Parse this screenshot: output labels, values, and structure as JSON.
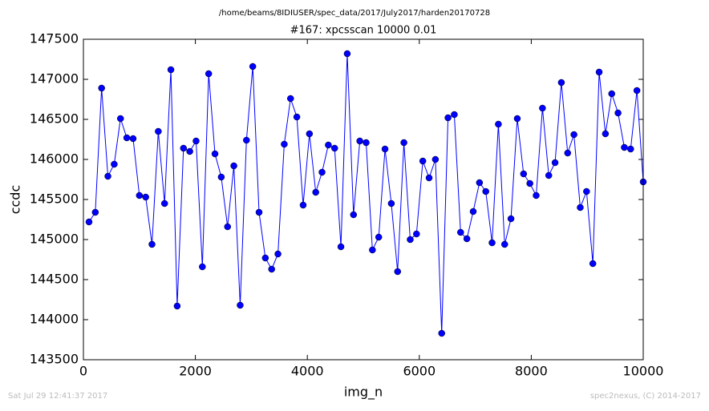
{
  "header": "/home/beams/8IDIUSER/spec_data/2017/July2017/harden20170728",
  "footer_left": "Sat Jul 29 12:41:37 2017",
  "footer_right": "spec2nexus, (C) 2014-2017",
  "chart_data": {
    "type": "line",
    "title": "#167: xpcsscan 10000 0.01",
    "xlabel": "img_n",
    "ylabel": "ccdc",
    "color": "#0000ff",
    "markers": true,
    "x": [
      100,
      212.5,
      325,
      437.5,
      550,
      662.5,
      775,
      887.5,
      1000,
      1112.5,
      1225,
      1337.5,
      1450,
      1562.5,
      1675,
      1787.5,
      1900,
      2012.5,
      2125,
      2237.5,
      2350,
      2462.5,
      2575,
      2687.5,
      2800,
      2912.5,
      3025,
      3137.5,
      3250,
      3362.5,
      3475,
      3587.5,
      3700,
      3812.5,
      3925,
      4037.5,
      4150,
      4262.5,
      4375,
      4487.5,
      4600,
      4712.5,
      4825,
      4937.5,
      5050,
      5162.5,
      5275,
      5387.5,
      5500,
      5612.5,
      5725,
      5837.5,
      5950,
      6062.5,
      6175,
      6287.5,
      6400,
      6512.5,
      6625,
      6737.5,
      6850,
      6962.5,
      7075,
      7187.5,
      7300,
      7412.5,
      7525,
      7637.5,
      7750,
      7862.5,
      7975,
      8087.5,
      8200,
      8312.5,
      8425,
      8537.5,
      8650,
      8762.5,
      8875,
      8987.5,
      9100,
      9212.5,
      9325,
      9437.5,
      9550,
      9662.5,
      9775,
      9887.5,
      10000
    ],
    "values": [
      145220,
      145340,
      146890,
      145790,
      145940,
      146510,
      146270,
      146260,
      145550,
      145530,
      144940,
      146350,
      145450,
      147120,
      144170,
      146140,
      146100,
      146230,
      144660,
      147070,
      146070,
      145780,
      145160,
      145920,
      144180,
      146240,
      147160,
      145340,
      144770,
      144630,
      144820,
      146190,
      146760,
      146530,
      145430,
      146320,
      145590,
      145840,
      146180,
      146140,
      144910,
      147320,
      145310,
      146230,
      146210,
      144870,
      145030,
      146130,
      145450,
      144600,
      146210,
      145000,
      145070,
      145980,
      145770,
      146000,
      143830,
      146520,
      146560,
      145090,
      145010,
      145350,
      145710,
      145600,
      144960,
      146440,
      144940,
      145260,
      146510,
      145820,
      145700,
      145550,
      146640,
      145800,
      145960,
      146960,
      146080,
      146310,
      145400,
      145600,
      144700,
      147090,
      146320,
      146820,
      146580,
      146150,
      146130,
      146860,
      145720
    ],
    "xlim": [
      0,
      10000
    ],
    "xticks": [
      0,
      2000,
      4000,
      6000,
      8000,
      10000
    ],
    "ylim": [
      143500,
      147500
    ],
    "yticks": [
      143500,
      144000,
      144500,
      145000,
      145500,
      146000,
      146500,
      147000,
      147500
    ]
  }
}
